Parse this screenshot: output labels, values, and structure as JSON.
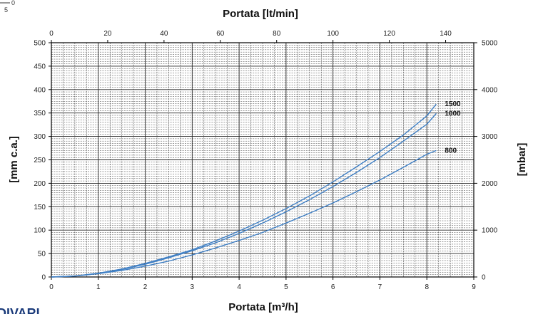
{
  "corner": {
    "line1": "0",
    "line2": "5"
  },
  "logo": {
    "text": "DIVARI",
    "color": "#1a3a7a"
  },
  "colors": {
    "curve": "#3f7fc4",
    "grid": "#222222",
    "axis": "#000000"
  },
  "chart_data": {
    "type": "line",
    "grid": true,
    "x_bottom": {
      "label": "Portata [m³/h]",
      "range": [
        0,
        9
      ],
      "ticks": [
        0,
        1,
        2,
        3,
        4,
        5,
        6,
        7,
        8,
        9
      ]
    },
    "x_top": {
      "label": "Portata [lt/min]",
      "range": [
        0,
        150
      ],
      "ticks": [
        0,
        20,
        40,
        60,
        80,
        100,
        120,
        140
      ]
    },
    "y_left": {
      "label": "[mm c.a.]",
      "range": [
        0,
        500
      ],
      "ticks": [
        0,
        50,
        100,
        150,
        200,
        250,
        300,
        350,
        400,
        450,
        500
      ]
    },
    "y_right": {
      "label": "[mbar]",
      "range": [
        0,
        5000
      ],
      "ticks": [
        0,
        1000,
        2000,
        3000,
        4000,
        5000
      ]
    },
    "series": [
      {
        "name": "1500",
        "points": [
          [
            0,
            0
          ],
          [
            0.5,
            2
          ],
          [
            1,
            8
          ],
          [
            1.5,
            17
          ],
          [
            2,
            29
          ],
          [
            2.5,
            43
          ],
          [
            3,
            58
          ],
          [
            3.5,
            77
          ],
          [
            4,
            98
          ],
          [
            4.5,
            121
          ],
          [
            5,
            146
          ],
          [
            5.5,
            173
          ],
          [
            6,
            203
          ],
          [
            6.5,
            235
          ],
          [
            7,
            268
          ],
          [
            7.5,
            303
          ],
          [
            8,
            344
          ],
          [
            8.2,
            369
          ]
        ]
      },
      {
        "name": "1000",
        "points": [
          [
            0,
            0
          ],
          [
            0.5,
            2
          ],
          [
            1,
            8
          ],
          [
            1.5,
            16
          ],
          [
            2,
            27
          ],
          [
            2.5,
            41
          ],
          [
            3,
            56
          ],
          [
            3.5,
            73
          ],
          [
            4,
            93
          ],
          [
            4.5,
            115
          ],
          [
            5,
            139
          ],
          [
            5.5,
            165
          ],
          [
            6,
            193
          ],
          [
            6.5,
            223
          ],
          [
            7,
            255
          ],
          [
            7.5,
            290
          ],
          [
            8,
            326
          ],
          [
            8.2,
            349
          ]
        ]
      },
      {
        "name": "800",
        "points": [
          [
            0,
            0
          ],
          [
            0.5,
            2
          ],
          [
            1,
            7
          ],
          [
            1.5,
            14
          ],
          [
            2,
            23
          ],
          [
            2.5,
            34
          ],
          [
            3,
            47
          ],
          [
            3.5,
            62
          ],
          [
            4,
            78
          ],
          [
            4.5,
            95
          ],
          [
            5,
            115
          ],
          [
            5.5,
            136
          ],
          [
            6,
            158
          ],
          [
            6.5,
            182
          ],
          [
            7,
            207
          ],
          [
            7.5,
            234
          ],
          [
            8,
            262
          ],
          [
            8.2,
            270
          ]
        ]
      }
    ]
  }
}
